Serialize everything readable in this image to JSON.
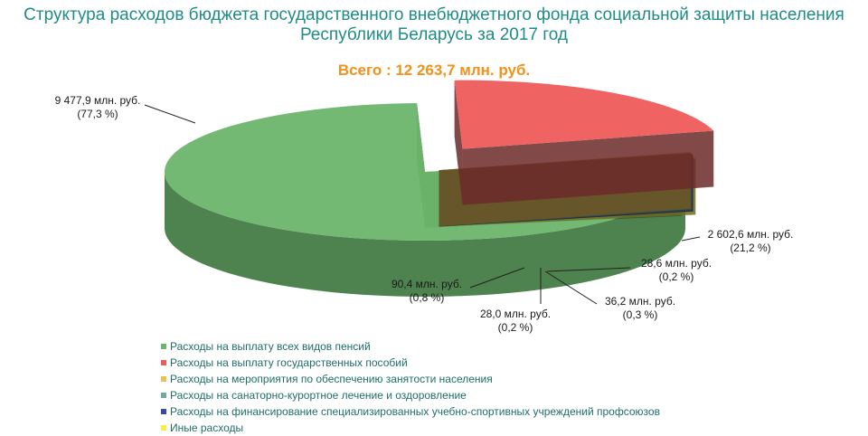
{
  "title": "Структура расходов бюджета государственного внебюджетного фонда социальной защиты населения Республики Беларусь за 2017 год",
  "total": "Всего : 12 263,7 млн. руб.",
  "chart_data": {
    "type": "pie",
    "title": "Структура расходов бюджета государственного внебюджетного фонда социальной защиты населения Республики Беларусь за 2017 год",
    "subtitle": "Всего : 12 263,7 млн. руб.",
    "legend_position": "bottom-left",
    "slices": [
      {
        "name": "Расходы на выплату всех видов пенсий",
        "value": 9477.9,
        "percent": 77.3,
        "color": "#6cb56c",
        "label_value": "9 477,9 млн. руб.",
        "label_percent": "(77,3 %)"
      },
      {
        "name": "Расходы на выплату государственных пособий",
        "value": 2602.6,
        "percent": 21.2,
        "color": "#ef5b5b",
        "label_value": "2 602,6 млн. руб.",
        "label_percent": "(21,2 %)"
      },
      {
        "name": "Расходы на мероприятия по обеспечению занятости населения",
        "value": 28.6,
        "percent": 0.2,
        "color": "#e8c15a",
        "label_value": "28,6 млн. руб.",
        "label_percent": "(0,2 %)"
      },
      {
        "name": "Расходы на санаторно-курортное лечение и оздоровление",
        "value": 36.2,
        "percent": 0.3,
        "color": "#6fa6a6",
        "label_value": "36,2 млн. руб.",
        "label_percent": "(0,3 %)"
      },
      {
        "name": "Расходы на финансирование специализированных учебно-спортивных учреждений профсоюзов",
        "value": 28.0,
        "percent": 0.2,
        "color": "#3a49a8",
        "label_value": "28,0 млн. руб.",
        "label_percent": "(0,2 %)"
      },
      {
        "name": "Иные расходы",
        "value": 90.4,
        "percent": 0.8,
        "color": "#f5ee4c",
        "label_value": "90,4 млн. руб.",
        "label_percent": "(0,8 %)"
      }
    ]
  }
}
